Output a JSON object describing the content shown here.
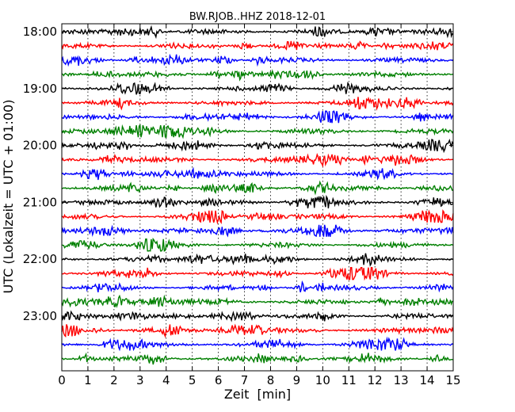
{
  "chart_data": {
    "type": "line",
    "title": "BW.RJOB..HHZ 2018-12-01",
    "xlabel": "Zeit  [min]",
    "ylabel": "UTC (Lokalzeit = UTC + 01:00)",
    "xlim": [
      0,
      15
    ],
    "x_ticks": [
      "0",
      "1",
      "2",
      "3",
      "4",
      "5",
      "6",
      "7",
      "8",
      "9",
      "10",
      "11",
      "12",
      "13",
      "14",
      "15"
    ],
    "y_tick_labels": [
      "18:00",
      "19:00",
      "20:00",
      "21:00",
      "22:00",
      "23:00"
    ],
    "grid": "x-dotted",
    "trace_colors": [
      "#000000",
      "#ff0000",
      "#0000ff",
      "#008000"
    ],
    "series": [
      {
        "start": "18:00",
        "color": "#000000"
      },
      {
        "start": "18:15",
        "color": "#ff0000"
      },
      {
        "start": "18:30",
        "color": "#0000ff"
      },
      {
        "start": "18:45",
        "color": "#008000"
      },
      {
        "start": "19:00",
        "color": "#000000"
      },
      {
        "start": "19:15",
        "color": "#ff0000"
      },
      {
        "start": "19:30",
        "color": "#0000ff"
      },
      {
        "start": "19:45",
        "color": "#008000"
      },
      {
        "start": "20:00",
        "color": "#000000"
      },
      {
        "start": "20:15",
        "color": "#ff0000"
      },
      {
        "start": "20:30",
        "color": "#0000ff"
      },
      {
        "start": "20:45",
        "color": "#008000"
      },
      {
        "start": "21:00",
        "color": "#000000"
      },
      {
        "start": "21:15",
        "color": "#ff0000"
      },
      {
        "start": "21:30",
        "color": "#0000ff"
      },
      {
        "start": "21:45",
        "color": "#008000"
      },
      {
        "start": "22:00",
        "color": "#000000"
      },
      {
        "start": "22:15",
        "color": "#ff0000"
      },
      {
        "start": "22:30",
        "color": "#0000ff"
      },
      {
        "start": "22:45",
        "color": "#008000"
      },
      {
        "start": "23:00",
        "color": "#000000"
      },
      {
        "start": "23:15",
        "color": "#ff0000"
      },
      {
        "start": "23:30",
        "color": "#0000ff"
      },
      {
        "start": "23:45",
        "color": "#008000"
      }
    ]
  }
}
